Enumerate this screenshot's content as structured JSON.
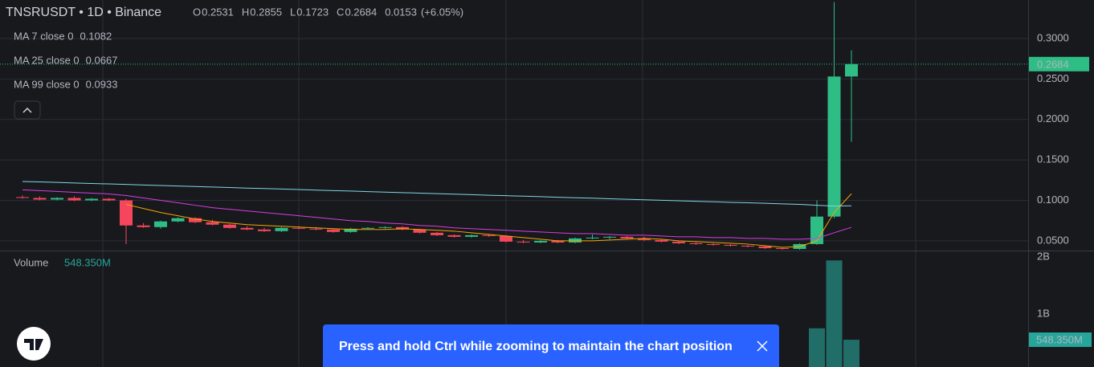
{
  "chart_data": [
    {
      "type": "candlestick",
      "title": "TNSRUSDT • 1D • Binance",
      "ohlc_labels": [
        "O",
        "H",
        "L",
        "C"
      ],
      "change": 0.0153,
      "change_percent": {
        "value": 6.05,
        "label": "(+6.05%)"
      },
      "up_color": "#2ebd85",
      "down_color": "#f6465d",
      "ohlc": [
        [
          0.104,
          0.106,
          0.102,
          0.103
        ],
        [
          0.103,
          0.105,
          0.1,
          0.101
        ],
        [
          0.101,
          0.104,
          0.1,
          0.103
        ],
        [
          0.103,
          0.105,
          0.099,
          0.1
        ],
        [
          0.1,
          0.103,
          0.099,
          0.102
        ],
        [
          0.102,
          0.103,
          0.099,
          0.1
        ],
        [
          0.1,
          0.102,
          0.046,
          0.069
        ],
        [
          0.069,
          0.072,
          0.066,
          0.067
        ],
        [
          0.067,
          0.075,
          0.065,
          0.074
        ],
        [
          0.074,
          0.079,
          0.073,
          0.078
        ],
        [
          0.078,
          0.079,
          0.072,
          0.073
        ],
        [
          0.073,
          0.076,
          0.069,
          0.07
        ],
        [
          0.07,
          0.071,
          0.065,
          0.066
        ],
        [
          0.066,
          0.068,
          0.063,
          0.064
        ],
        [
          0.064,
          0.066,
          0.061,
          0.062
        ],
        [
          0.062,
          0.067,
          0.061,
          0.066
        ],
        [
          0.066,
          0.068,
          0.064,
          0.065
        ],
        [
          0.065,
          0.067,
          0.063,
          0.064
        ],
        [
          0.064,
          0.065,
          0.06,
          0.061
        ],
        [
          0.061,
          0.066,
          0.06,
          0.065
        ],
        [
          0.065,
          0.067,
          0.064,
          0.066
        ],
        [
          0.066,
          0.068,
          0.065,
          0.067
        ],
        [
          0.067,
          0.068,
          0.063,
          0.064
        ],
        [
          0.064,
          0.065,
          0.059,
          0.06
        ],
        [
          0.06,
          0.061,
          0.056,
          0.057
        ],
        [
          0.057,
          0.058,
          0.054,
          0.055
        ],
        [
          0.055,
          0.058,
          0.054,
          0.057
        ],
        [
          0.057,
          0.058,
          0.055,
          0.056
        ],
        [
          0.056,
          0.057,
          0.048,
          0.049
        ],
        [
          0.049,
          0.051,
          0.047,
          0.048
        ],
        [
          0.048,
          0.051,
          0.047,
          0.05
        ],
        [
          0.05,
          0.051,
          0.047,
          0.048
        ],
        [
          0.048,
          0.054,
          0.047,
          0.053
        ],
        [
          0.053,
          0.058,
          0.052,
          0.054
        ],
        [
          0.054,
          0.056,
          0.052,
          0.055
        ],
        [
          0.055,
          0.056,
          0.052,
          0.053
        ],
        [
          0.053,
          0.055,
          0.05,
          0.051
        ],
        [
          0.051,
          0.052,
          0.048,
          0.049
        ],
        [
          0.049,
          0.05,
          0.046,
          0.047
        ],
        [
          0.047,
          0.048,
          0.045,
          0.046
        ],
        [
          0.046,
          0.047,
          0.044,
          0.045
        ],
        [
          0.045,
          0.046,
          0.043,
          0.044
        ],
        [
          0.044,
          0.045,
          0.042,
          0.043
        ],
        [
          0.043,
          0.044,
          0.04,
          0.041
        ],
        [
          0.041,
          0.042,
          0.039,
          0.04
        ],
        [
          0.04,
          0.047,
          0.039,
          0.046
        ],
        [
          0.046,
          0.1,
          0.045,
          0.08
        ],
        [
          0.08,
          0.345,
          0.078,
          0.2531
        ],
        [
          0.2531,
          0.2855,
          0.1723,
          0.2684
        ]
      ],
      "series": [
        {
          "name": "MA 7 close 0",
          "color": "#f7a600",
          "values": [
            null,
            null,
            null,
            null,
            null,
            null,
            0.095,
            0.09,
            0.085,
            0.081,
            0.077,
            0.074,
            0.072,
            0.07,
            0.069,
            0.068,
            0.067,
            0.066,
            0.065,
            0.064,
            0.064,
            0.064,
            0.065,
            0.064,
            0.063,
            0.062,
            0.06,
            0.058,
            0.056,
            0.054,
            0.052,
            0.05,
            0.05,
            0.05,
            0.051,
            0.052,
            0.053,
            0.052,
            0.05,
            0.049,
            0.048,
            0.047,
            0.046,
            0.044,
            0.042,
            0.043,
            0.05,
            0.085,
            0.1082
          ]
        },
        {
          "name": "MA 25 close 0",
          "color": "#d63fe0",
          "values": [
            0.113,
            0.112,
            0.111,
            0.11,
            0.109,
            0.108,
            0.106,
            0.103,
            0.1,
            0.097,
            0.094,
            0.091,
            0.089,
            0.087,
            0.085,
            0.083,
            0.081,
            0.079,
            0.077,
            0.075,
            0.074,
            0.072,
            0.071,
            0.069,
            0.068,
            0.066,
            0.065,
            0.064,
            0.063,
            0.062,
            0.061,
            0.06,
            0.059,
            0.059,
            0.058,
            0.057,
            0.057,
            0.056,
            0.055,
            0.055,
            0.054,
            0.054,
            0.053,
            0.053,
            0.052,
            0.052,
            0.053,
            0.06,
            0.0667
          ]
        },
        {
          "name": "MA 99 close 0",
          "color": "#7fd6e4",
          "values": [
            0.1234,
            0.1228,
            0.1222,
            0.1215,
            0.1209,
            0.1203,
            0.1197,
            0.119,
            0.1184,
            0.1178,
            0.1171,
            0.1165,
            0.1159,
            0.1152,
            0.1146,
            0.114,
            0.1134,
            0.1127,
            0.1121,
            0.1115,
            0.1108,
            0.1102,
            0.1096,
            0.109,
            0.1083,
            0.1077,
            0.1071,
            0.1064,
            0.1058,
            0.1052,
            0.1046,
            0.1039,
            0.1033,
            0.1027,
            0.102,
            0.1014,
            0.1008,
            0.1001,
            0.0995,
            0.0989,
            0.0983,
            0.0976,
            0.097,
            0.0964,
            0.0957,
            0.0951,
            0.094,
            0.093,
            0.0933
          ]
        }
      ],
      "ylim": [
        0.038,
        0.3476
      ],
      "yticks": [
        {
          "value": 0.05,
          "label": "0.0500"
        },
        {
          "value": 0.1,
          "label": "0.1000"
        },
        {
          "value": 0.15,
          "label": "0.1500"
        },
        {
          "value": 0.2,
          "label": "0.2000"
        },
        {
          "value": 0.25,
          "label": "0.2500"
        },
        {
          "value": 0.3,
          "label": "0.3000"
        }
      ],
      "grid": true
    },
    {
      "type": "bar",
      "title": "Volume",
      "values": [
        25000000,
        24000000,
        22000000,
        26000000,
        21000000,
        20000000,
        60000000,
        30000000,
        28000000,
        27000000,
        25000000,
        24000000,
        22000000,
        21000000,
        20000000,
        22000000,
        21000000,
        20000000,
        19000000,
        21000000,
        20000000,
        19000000,
        18000000,
        20000000,
        19000000,
        18000000,
        17000000,
        18000000,
        22000000,
        20000000,
        19000000,
        18000000,
        19000000,
        21000000,
        18000000,
        17000000,
        17000000,
        16000000,
        16000000,
        15000000,
        15000000,
        15000000,
        14000000,
        15000000,
        16000000,
        20000000,
        750000000,
        1940000000,
        548350000
      ],
      "value_labels": [
        null,
        null,
        null,
        null,
        null,
        null,
        null,
        null,
        null,
        null,
        null,
        null,
        null,
        null,
        null,
        null,
        null,
        null,
        null,
        null,
        null,
        null,
        null,
        null,
        null,
        null,
        null,
        null,
        null,
        null,
        null,
        null,
        null,
        null,
        null,
        null,
        null,
        null,
        null,
        null,
        null,
        null,
        null,
        null,
        null,
        null,
        null,
        null,
        "548.350M"
      ],
      "ylim": [
        0,
        2113000000
      ],
      "yticks": [
        {
          "value": 1000000000,
          "label": "1B"
        },
        {
          "value": 2000000000,
          "label": "2B"
        }
      ]
    }
  ],
  "toast": {
    "message": "Press and hold Ctrl while zooming to maintain the chart position"
  }
}
